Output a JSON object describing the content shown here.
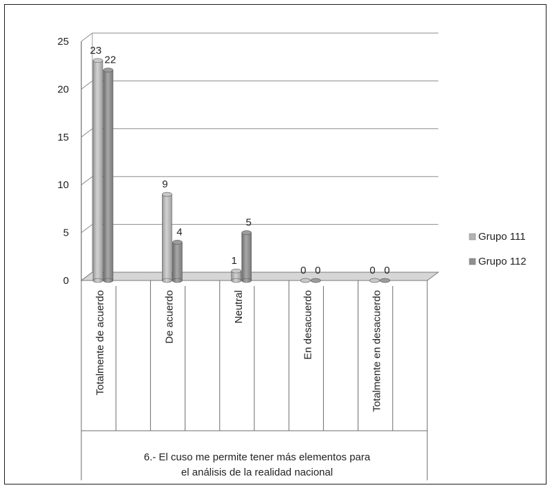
{
  "chart_data": {
    "type": "bar",
    "title": "",
    "xlabel": "",
    "ylabel": "",
    "ylim": [
      0,
      25
    ],
    "yticks": [
      0,
      5,
      10,
      15,
      20,
      25
    ],
    "categories": [
      "Totalmente de acuerdo",
      "De acuerdo",
      "Neutral",
      "En desacuerdo",
      "Totalmente en desacuerdo"
    ],
    "series": [
      {
        "name": "Grupo 111",
        "values": [
          23,
          9,
          1,
          0,
          0
        ],
        "color": "#b3b3b3"
      },
      {
        "name": "Grupo 112",
        "values": [
          22,
          4,
          5,
          0,
          0
        ],
        "color": "#8f8f8f"
      }
    ],
    "group_label": "6.- El cuso me permite tener más elementos para el análisis de la realidad nacional",
    "grid": true,
    "legend_position": "right",
    "style": "3d-cylinder"
  }
}
